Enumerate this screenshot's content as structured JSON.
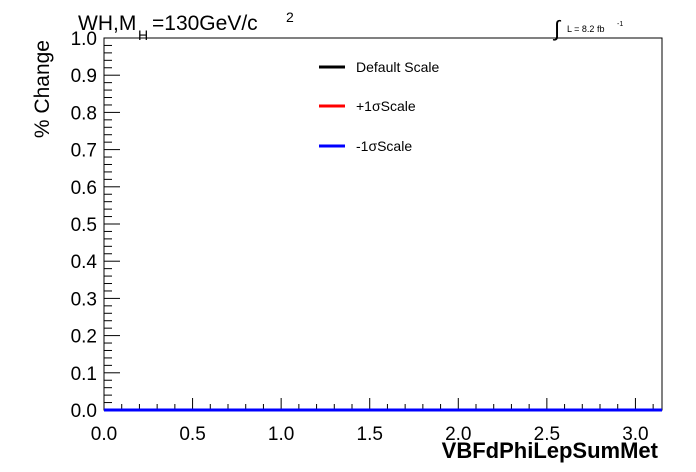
{
  "chart_data": {
    "type": "line",
    "title": {
      "prefix": "WH,M",
      "sub": "H",
      "value": "=130GeV/c",
      "sup": "2"
    },
    "lumi": {
      "integral": "∫",
      "label": "L = 8.2 fb",
      "sup": "-1"
    },
    "xlabel": "VBFdPhiLepSumMet",
    "ylabel": "% Change",
    "xlim": [
      0.0,
      3.15
    ],
    "ylim": [
      0.0,
      1.0
    ],
    "x_ticks": [
      "0.0",
      "0.5",
      "1.0",
      "1.5",
      "2.0",
      "2.5",
      "3.0"
    ],
    "y_ticks": [
      "0.0",
      "0.1",
      "0.2",
      "0.3",
      "0.4",
      "0.5",
      "0.6",
      "0.7",
      "0.8",
      "0.9",
      "1.0"
    ],
    "grid": false,
    "legend_position": "top-center",
    "series": [
      {
        "name": "Default Scale",
        "color": "#000000",
        "x": [
          0.0,
          3.15
        ],
        "y": [
          0.0,
          0.0
        ]
      },
      {
        "name": "+1σScale",
        "color": "#ff0000",
        "x": [
          0.0,
          3.15
        ],
        "y": [
          0.0,
          0.0
        ]
      },
      {
        "name": "-1σScale",
        "color": "#0000ff",
        "x": [
          0.0,
          3.15
        ],
        "y": [
          0.0,
          0.0
        ]
      }
    ]
  }
}
